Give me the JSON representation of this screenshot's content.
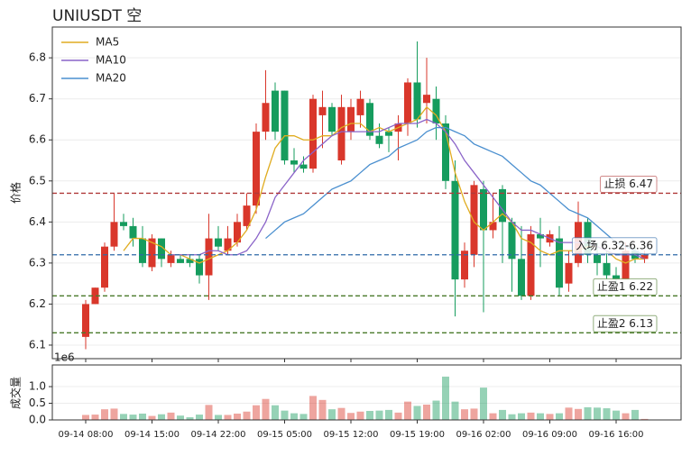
{
  "chart_data": [
    {
      "type": "candlestick",
      "title": "UNIUSDT 空",
      "ylabel": "价格",
      "up_color": "#d9372b",
      "down_color": "#169c5e",
      "open": [
        6.12,
        6.2,
        6.24,
        6.34,
        6.4,
        6.39,
        6.36,
        6.29,
        6.36,
        6.3,
        6.31,
        6.31,
        6.31,
        6.27,
        6.36,
        6.33,
        6.35,
        6.39,
        6.44,
        6.62,
        6.72,
        6.72,
        6.55,
        6.54,
        6.53,
        6.66,
        6.68,
        6.55,
        6.62,
        6.66,
        6.69,
        6.61,
        6.62,
        6.62,
        6.64,
        6.74,
        6.69,
        6.7,
        6.64,
        6.5,
        6.26,
        6.32,
        6.48,
        6.38,
        6.48,
        6.4,
        6.31,
        6.22,
        6.37,
        6.35,
        6.36,
        6.25,
        6.3,
        6.4,
        6.32,
        6.3,
        6.27,
        6.26,
        6.33,
        6.31
      ],
      "high": [
        6.21,
        6.24,
        6.35,
        6.47,
        6.42,
        6.41,
        6.39,
        6.37,
        6.36,
        6.33,
        6.32,
        6.32,
        6.32,
        6.42,
        6.39,
        6.39,
        6.42,
        6.47,
        6.64,
        6.77,
        6.74,
        6.72,
        6.58,
        6.56,
        6.71,
        6.72,
        6.69,
        6.71,
        6.7,
        6.72,
        6.7,
        6.64,
        6.63,
        6.66,
        6.75,
        6.84,
        6.8,
        6.73,
        6.66,
        6.55,
        6.35,
        6.5,
        6.5,
        6.47,
        6.49,
        6.41,
        6.39,
        6.39,
        6.41,
        6.38,
        6.39,
        6.33,
        6.45,
        6.41,
        6.35,
        6.33,
        6.29,
        6.35,
        6.34,
        6.33
      ],
      "low": [
        6.09,
        6.2,
        6.23,
        6.33,
        6.38,
        6.34,
        6.29,
        6.28,
        6.29,
        6.29,
        6.3,
        6.29,
        6.25,
        6.21,
        6.33,
        6.32,
        6.34,
        6.38,
        6.42,
        6.6,
        6.6,
        6.54,
        6.52,
        6.52,
        6.52,
        6.58,
        6.61,
        6.54,
        6.6,
        6.63,
        6.6,
        6.58,
        6.57,
        6.55,
        6.61,
        6.63,
        6.64,
        6.6,
        6.48,
        6.17,
        6.24,
        6.29,
        6.18,
        6.36,
        6.3,
        6.23,
        6.21,
        6.21,
        6.29,
        6.34,
        6.22,
        6.23,
        6.29,
        6.3,
        6.27,
        6.26,
        6.25,
        6.26,
        6.3,
        6.3
      ],
      "close": [
        6.2,
        6.24,
        6.34,
        6.4,
        6.39,
        6.36,
        6.3,
        6.36,
        6.31,
        6.32,
        6.3,
        6.3,
        6.27,
        6.36,
        6.34,
        6.36,
        6.4,
        6.44,
        6.62,
        6.69,
        6.62,
        6.55,
        6.54,
        6.53,
        6.7,
        6.68,
        6.62,
        6.68,
        6.68,
        6.7,
        6.61,
        6.59,
        6.61,
        6.64,
        6.74,
        6.65,
        6.71,
        6.64,
        6.5,
        6.26,
        6.33,
        6.49,
        6.38,
        6.4,
        6.4,
        6.31,
        6.22,
        6.37,
        6.36,
        6.37,
        6.24,
        6.3,
        6.4,
        6.32,
        6.3,
        6.27,
        6.26,
        6.33,
        6.31,
        6.32
      ],
      "series": [
        {
          "name": "MA5",
          "color": "#e0ac20",
          "values": [
            null,
            null,
            null,
            null,
            6.33,
            6.36,
            6.36,
            6.35,
            6.34,
            6.32,
            6.32,
            6.31,
            6.3,
            6.31,
            6.32,
            6.33,
            6.35,
            6.38,
            6.43,
            6.51,
            6.58,
            6.61,
            6.61,
            6.6,
            6.6,
            6.61,
            6.61,
            6.63,
            6.64,
            6.64,
            6.62,
            6.63,
            6.62,
            6.63,
            6.64,
            6.65,
            6.68,
            6.66,
            6.62,
            6.52,
            6.45,
            6.4,
            6.38,
            6.4,
            6.42,
            6.4,
            6.36,
            6.35,
            6.33,
            6.32,
            6.33,
            6.33,
            6.33,
            6.34,
            6.34,
            6.33,
            6.31,
            6.3,
            6.31,
            6.31
          ]
        },
        {
          "name": "MA10",
          "color": "#8a63c8",
          "values": [
            null,
            null,
            null,
            null,
            null,
            null,
            null,
            null,
            null,
            6.32,
            6.32,
            6.32,
            6.32,
            6.33,
            6.33,
            6.32,
            6.32,
            6.33,
            6.36,
            6.4,
            6.46,
            6.49,
            6.52,
            6.55,
            6.57,
            6.59,
            6.61,
            6.62,
            6.62,
            6.62,
            6.62,
            6.62,
            6.63,
            6.64,
            6.64,
            6.64,
            6.65,
            6.64,
            6.62,
            6.59,
            6.55,
            6.52,
            6.49,
            6.46,
            6.43,
            6.4,
            6.38,
            6.38,
            6.37,
            6.36,
            6.35,
            6.35,
            6.35,
            6.35,
            6.34,
            6.33,
            6.32,
            6.32,
            6.32,
            6.31
          ]
        },
        {
          "name": "MA20",
          "color": "#4a8fcf",
          "values": [
            null,
            null,
            null,
            null,
            null,
            null,
            null,
            null,
            null,
            null,
            null,
            null,
            null,
            null,
            null,
            null,
            null,
            null,
            null,
            6.36,
            6.38,
            6.4,
            6.41,
            6.42,
            6.44,
            6.46,
            6.48,
            6.49,
            6.5,
            6.52,
            6.54,
            6.55,
            6.56,
            6.58,
            6.59,
            6.6,
            6.62,
            6.63,
            6.63,
            6.62,
            6.61,
            6.59,
            6.58,
            6.57,
            6.56,
            6.54,
            6.52,
            6.5,
            6.49,
            6.47,
            6.45,
            6.43,
            6.42,
            6.41,
            6.39,
            6.37,
            6.35,
            6.34,
            6.33,
            6.32
          ]
        }
      ],
      "levels": [
        {
          "label": "止损 6.47",
          "value": 6.47,
          "color": "#b03a3a"
        },
        {
          "label": "入场 6.32-6.36",
          "value": 6.32,
          "color": "#2e6aa8"
        },
        {
          "label": "止盈1 6.22",
          "value": 6.22,
          "color": "#4a7a2a"
        },
        {
          "label": "止盈2 6.13",
          "value": 6.13,
          "color": "#4a7a2a"
        }
      ],
      "ylim": [
        6.067,
        6.875
      ],
      "yticks": [
        6.1,
        6.2,
        6.3,
        6.4,
        6.5,
        6.6,
        6.7,
        6.8
      ],
      "grid": true,
      "legend": "upper left"
    },
    {
      "type": "bar",
      "ylabel": "成交量",
      "offset_label": "1e6",
      "categories": [
        "09-14 08:00",
        null,
        null,
        null,
        null,
        null,
        null,
        "09-14 15:00",
        null,
        null,
        null,
        null,
        null,
        null,
        "09-14 22:00",
        null,
        null,
        null,
        null,
        null,
        null,
        "09-15 05:00",
        null,
        null,
        null,
        null,
        null,
        null,
        "09-15 12:00",
        null,
        null,
        null,
        null,
        null,
        null,
        "09-15 19:00",
        null,
        null,
        null,
        null,
        null,
        null,
        "09-16 02:00",
        null,
        null,
        null,
        null,
        null,
        null,
        "09-16 09:00",
        null,
        null,
        null,
        null,
        null,
        null,
        "09-16 16:00",
        null,
        null,
        null
      ],
      "values": [
        0.15,
        0.16,
        0.32,
        0.34,
        0.18,
        0.16,
        0.19,
        0.12,
        0.17,
        0.22,
        0.13,
        0.08,
        0.16,
        0.45,
        0.15,
        0.15,
        0.19,
        0.25,
        0.44,
        0.63,
        0.44,
        0.28,
        0.2,
        0.18,
        0.72,
        0.6,
        0.32,
        0.36,
        0.21,
        0.25,
        0.27,
        0.28,
        0.3,
        0.22,
        0.55,
        0.42,
        0.46,
        0.58,
        1.3,
        0.55,
        0.32,
        0.34,
        0.97,
        0.2,
        0.3,
        0.17,
        0.2,
        0.22,
        0.2,
        0.18,
        0.2,
        0.37,
        0.33,
        0.38,
        0.37,
        0.35,
        0.28,
        0.2,
        0.3,
        0.03
      ],
      "ylim": [
        0,
        1.65
      ],
      "yticks": [
        {
          "value": 0,
          "label": "0.0"
        },
        0.5,
        {
          "value": 1,
          "label": "1.0"
        }
      ],
      "grid": true
    }
  ]
}
